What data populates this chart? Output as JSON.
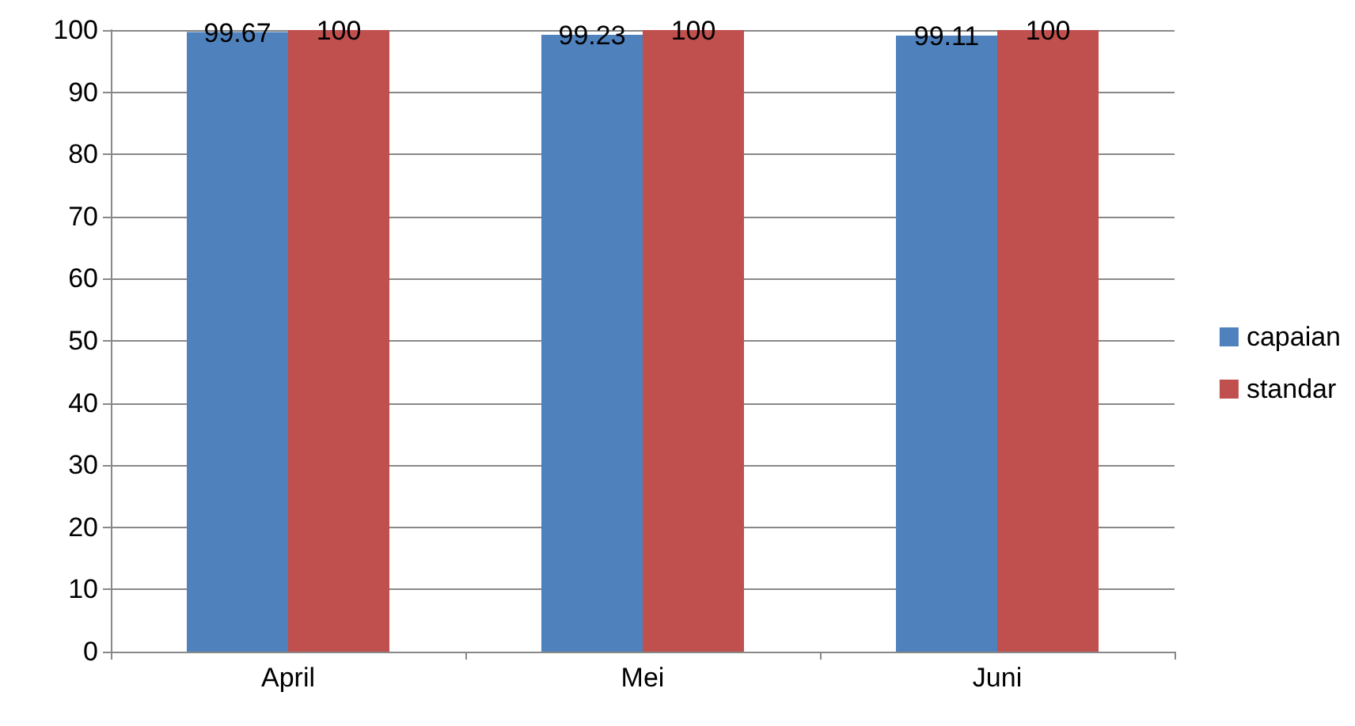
{
  "chart_data": {
    "type": "bar",
    "categories": [
      "April",
      "Mei",
      "Juni"
    ],
    "series": [
      {
        "name": "capaian",
        "color": "#4f81bd",
        "values": [
          99.67,
          99.23,
          99.11
        ]
      },
      {
        "name": "standar",
        "color": "#c0504d",
        "values": [
          100,
          100,
          100
        ]
      }
    ],
    "ylim": [
      0,
      100
    ],
    "yticks": [
      0,
      10,
      20,
      30,
      40,
      50,
      60,
      70,
      80,
      90,
      100
    ],
    "grid": "y",
    "legend": "right",
    "data_labels": true
  }
}
